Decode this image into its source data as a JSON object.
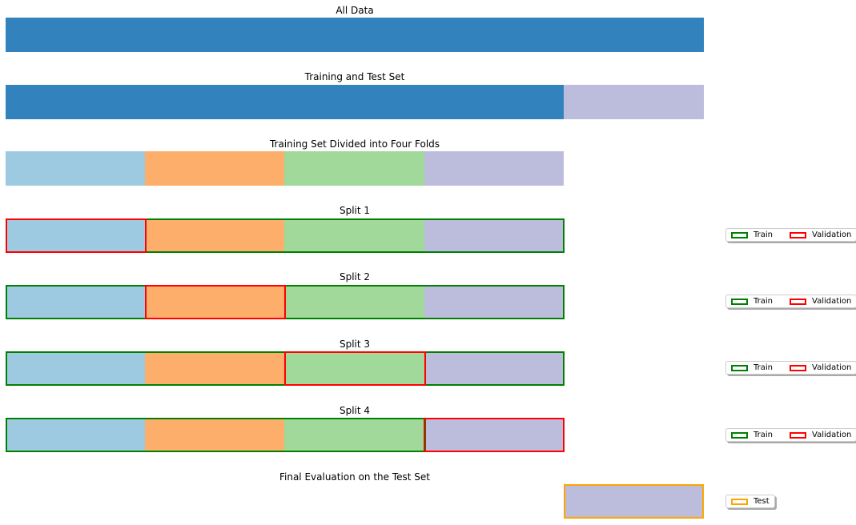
{
  "colors": {
    "all_data": "#3182bd",
    "fold_1": "#9ecae1",
    "fold_2": "#fdae6b",
    "fold_3": "#a1d99b",
    "fold_4": "#bcbddc",
    "test": "#bcbddc",
    "train_outline": "#008000",
    "validation_outline": "#ff0000",
    "test_outline": "#ffa500"
  },
  "rows": {
    "all_data": {
      "title": "All Data"
    },
    "train_test": {
      "title": "Training and Test Set"
    },
    "folds": {
      "title": "Training Set Divided into Four Folds"
    },
    "split_1": {
      "title": "Split 1"
    },
    "split_2": {
      "title": "Split 2"
    },
    "split_3": {
      "title": "Split 3"
    },
    "split_4": {
      "title": "Split 4"
    },
    "final": {
      "title": "Final Evaluation on the Test Set"
    }
  },
  "legend": {
    "train": "Train",
    "validation": "Validation",
    "test": "Test"
  }
}
